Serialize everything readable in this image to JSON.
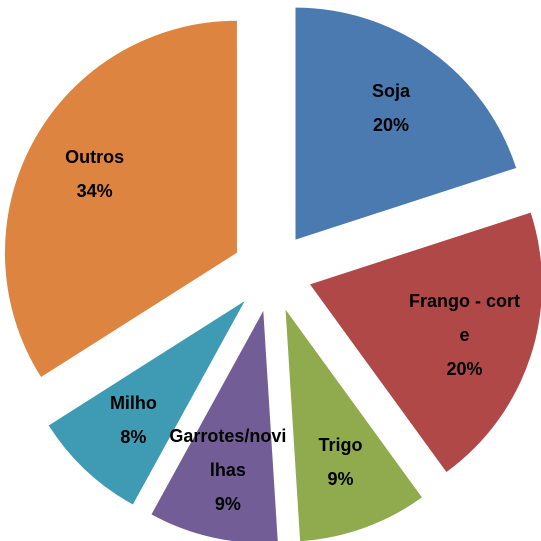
{
  "chart_data": {
    "type": "pie",
    "categories": [
      "Soja",
      "Frango - corte",
      "Trigo",
      "Garrotes/novilhas",
      "Milho",
      "Outros"
    ],
    "values": [
      20,
      20,
      9,
      9,
      8,
      34
    ],
    "value_labels": [
      "20%",
      "20%",
      "9%",
      "9%",
      "8%",
      "34%"
    ],
    "colors": [
      "#4a7ab0",
      "#b04848",
      "#8fab4e",
      "#735d96",
      "#3f9bb3",
      "#dd8540"
    ],
    "exploded": true
  }
}
